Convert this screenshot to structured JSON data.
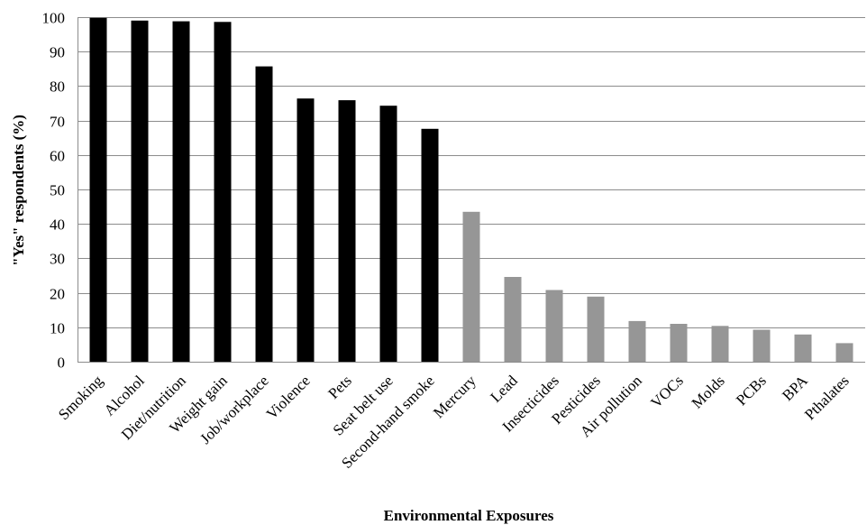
{
  "chart_data": {
    "type": "bar",
    "xlabel": "Environmental Exposures",
    "ylabel": "\"Yes\" respondents (%)",
    "ylim": [
      0,
      100
    ],
    "yticks": [
      0,
      10,
      20,
      30,
      40,
      50,
      60,
      70,
      80,
      90,
      100
    ],
    "grid": true,
    "legend": "none",
    "colors": {
      "dark": "#000000",
      "light": "#969696"
    },
    "categories": [
      "Smoking",
      "Alcohol",
      "Diet/nutrition",
      "Weight gain",
      "Job/workplace",
      "Violence",
      "Pets",
      "Seat belt use",
      "Second-hand smoke",
      "Mercury",
      "Lead",
      "Insecticides",
      "Pesticides",
      "Air pollution",
      "VOCs",
      "Molds",
      "PCBs",
      "BPA",
      "Pthalates"
    ],
    "values": [
      99.8,
      99,
      98.8,
      98.6,
      85.7,
      76.4,
      75.9,
      74.3,
      67.6,
      43.5,
      24.6,
      20.8,
      18.9,
      11.8,
      11.0,
      10.4,
      9.3,
      7.9,
      5.4
    ],
    "bar_color_groups": [
      "dark",
      "dark",
      "dark",
      "dark",
      "dark",
      "dark",
      "dark",
      "dark",
      "dark",
      "light",
      "light",
      "light",
      "light",
      "light",
      "light",
      "light",
      "light",
      "light",
      "light"
    ]
  }
}
